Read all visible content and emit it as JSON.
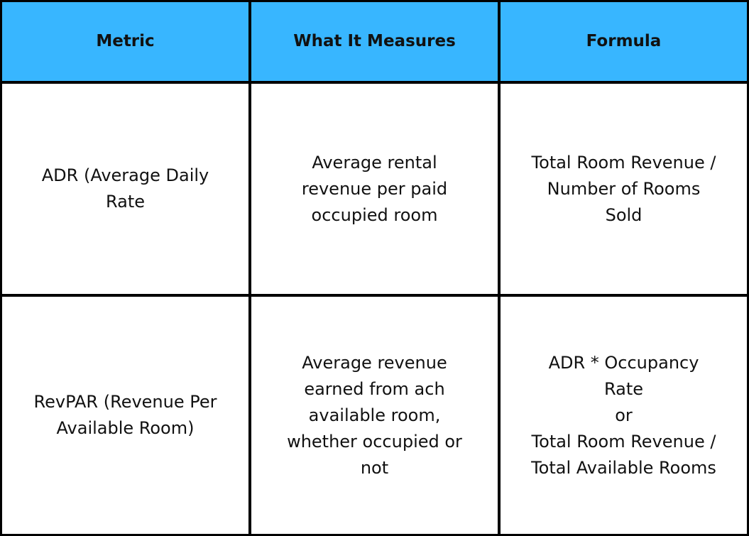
{
  "table": {
    "header": [
      "Metric",
      "What It Measures",
      "Formula"
    ],
    "rows": [
      [
        [
          "ADR (Average Daily",
          "Rate"
        ],
        [
          "Average rental",
          "revenue per paid",
          "occupied room"
        ],
        [
          "Total Room Revenue /",
          "Number of Rooms",
          "Sold"
        ]
      ],
      [
        [
          "RevPAR (Revenue Per",
          "Available Room)"
        ],
        [
          "Average revenue",
          "earned from ach",
          "available room,",
          "whether occupied or",
          "not"
        ],
        [
          "ADR * Occupancy",
          "Rate",
          "or",
          "Total Room Revenue /",
          "Total Available Rooms"
        ]
      ]
    ]
  }
}
